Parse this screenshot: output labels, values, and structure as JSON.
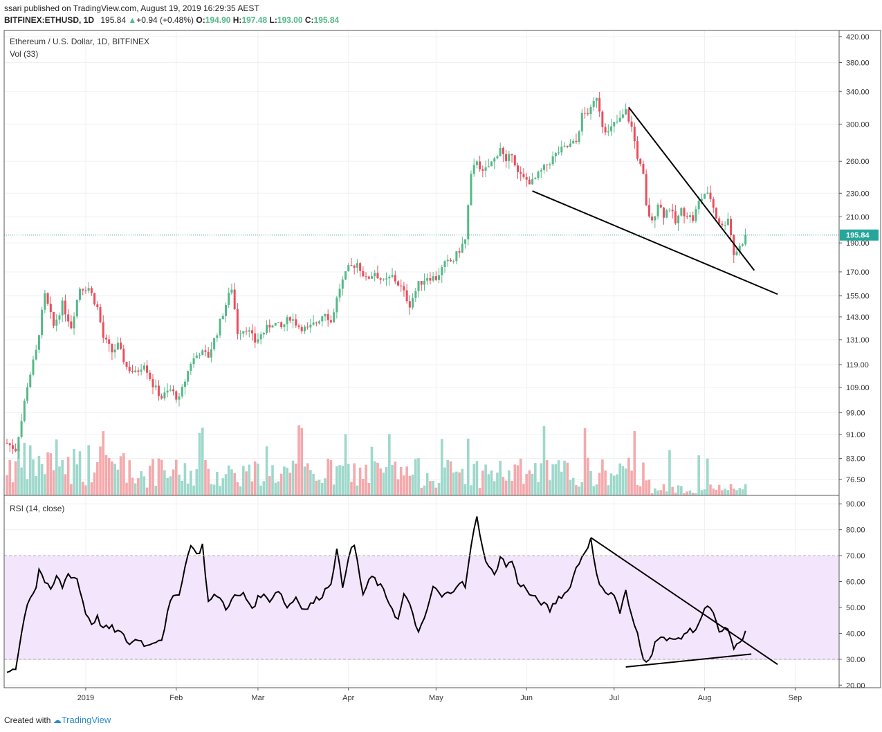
{
  "header": {
    "published": "ssari published on TradingView.com, August 19, 2019 16:29:35 AEST",
    "symbol": "BITFINEX:ETHUSD, 1D",
    "last": "195.84",
    "change": "+0.94 (+0.48%)",
    "o_label": "O:",
    "o": "194.90",
    "h_label": "H:",
    "h": "197.48",
    "l_label": "L:",
    "l": "193.00",
    "c_label": "C:",
    "c": "195.84"
  },
  "footer": {
    "created": "Created with",
    "brand": "TradingView"
  },
  "colors": {
    "up": "#53b987",
    "down": "#eb4d5c",
    "up_vol": "#9ed8cb",
    "down_vol": "#f4a9ad",
    "rsi_band": "#f3e5fc",
    "rsi_line": "#000000",
    "price_line": "#26a69a",
    "price_label_bg": "#26a69a"
  },
  "chart_data": [
    {
      "type": "candlestick",
      "title": "Ethereum / U.S. Dollar, 1D, BITFINEX",
      "volume_label": "Vol (33)",
      "scale": "log",
      "ylim": [
        72,
        430
      ],
      "y_ticks": [
        420,
        380,
        340,
        300,
        260,
        230,
        210,
        190,
        170,
        155,
        143,
        131,
        119,
        109,
        99,
        91,
        83,
        76.5
      ],
      "y_tick_labels": [
        "420.00",
        "380.00",
        "340.00",
        "300.00",
        "260.00",
        "230.00",
        "210.00",
        "190.00",
        "170.00",
        "155.00",
        "143.00",
        "131.00",
        "119.00",
        "109.00",
        "99.00",
        "91.00",
        "83.00",
        "76.50"
      ],
      "last_price": 195.84,
      "last_price_label": "195.84",
      "x_days": [
        0,
        253
      ],
      "x_ticks": [
        {
          "label": "2019",
          "day": 27
        },
        {
          "label": "Feb",
          "day": 58
        },
        {
          "label": "Mar",
          "day": 86
        },
        {
          "label": "Apr",
          "day": 117
        },
        {
          "label": "May",
          "day": 147
        },
        {
          "label": "Jun",
          "day": 178
        },
        {
          "label": "Jul",
          "day": 208
        },
        {
          "label": "Aug",
          "day": 239
        },
        {
          "label": "Sep",
          "day": 270
        }
      ],
      "keypoints": [
        [
          0,
          88
        ],
        [
          3,
          86
        ],
        [
          5,
          96
        ],
        [
          7,
          110
        ],
        [
          10,
          125
        ],
        [
          13,
          155
        ],
        [
          16,
          138
        ],
        [
          19,
          150
        ],
        [
          22,
          138
        ],
        [
          25,
          160
        ],
        [
          28,
          160
        ],
        [
          31,
          148
        ],
        [
          33,
          132
        ],
        [
          36,
          125
        ],
        [
          38,
          128
        ],
        [
          41,
          118
        ],
        [
          44,
          115
        ],
        [
          47,
          120
        ],
        [
          50,
          110
        ],
        [
          53,
          105
        ],
        [
          56,
          108
        ],
        [
          59,
          104
        ],
        [
          61,
          112
        ],
        [
          63,
          120
        ],
        [
          66,
          125
        ],
        [
          69,
          123
        ],
        [
          72,
          135
        ],
        [
          75,
          150
        ],
        [
          77,
          160
        ],
        [
          79,
          135
        ],
        [
          82,
          137
        ],
        [
          85,
          130
        ],
        [
          88,
          135
        ],
        [
          91,
          140
        ],
        [
          94,
          137
        ],
        [
          97,
          143
        ],
        [
          100,
          138
        ],
        [
          103,
          136
        ],
        [
          106,
          140
        ],
        [
          109,
          146
        ],
        [
          111,
          140
        ],
        [
          114,
          160
        ],
        [
          117,
          172
        ],
        [
          120,
          176
        ],
        [
          123,
          165
        ],
        [
          126,
          170
        ],
        [
          129,
          163
        ],
        [
          132,
          167
        ],
        [
          135,
          160
        ],
        [
          138,
          150
        ],
        [
          141,
          162
        ],
        [
          144,
          167
        ],
        [
          147,
          166
        ],
        [
          150,
          175
        ],
        [
          153,
          178
        ],
        [
          155,
          185
        ],
        [
          157,
          192
        ],
        [
          159,
          245
        ],
        [
          161,
          262
        ],
        [
          163,
          248
        ],
        [
          165,
          255
        ],
        [
          167,
          262
        ],
        [
          169,
          275
        ],
        [
          171,
          257
        ],
        [
          173,
          270
        ],
        [
          175,
          248
        ],
        [
          177,
          243
        ],
        [
          180,
          240
        ],
        [
          183,
          250
        ],
        [
          186,
          260
        ],
        [
          189,
          270
        ],
        [
          192,
          275
        ],
        [
          195,
          280
        ],
        [
          197,
          310
        ],
        [
          200,
          316
        ],
        [
          202,
          335
        ],
        [
          204,
          300
        ],
        [
          206,
          290
        ],
        [
          208,
          300
        ],
        [
          210,
          305
        ],
        [
          212,
          315
        ],
        [
          214,
          296
        ],
        [
          216,
          265
        ],
        [
          218,
          245
        ],
        [
          219,
          218
        ],
        [
          221,
          205
        ],
        [
          223,
          222
        ],
        [
          225,
          212
        ],
        [
          227,
          218
        ],
        [
          229,
          205
        ],
        [
          231,
          215
        ],
        [
          233,
          212
        ],
        [
          235,
          208
        ],
        [
          237,
          222
        ],
        [
          239,
          230
        ],
        [
          241,
          226
        ],
        [
          243,
          210
        ],
        [
          245,
          202
        ],
        [
          247,
          210
        ],
        [
          249,
          182
        ],
        [
          251,
          187
        ],
        [
          253,
          195
        ]
      ],
      "series": [
        {
          "name": "Upper trendline",
          "points": [
            [
              213,
              320
            ],
            [
              240,
              226
            ],
            [
              256,
              171
            ]
          ]
        },
        {
          "name": "Lower trendline",
          "points": [
            [
              180,
              232
            ],
            [
              222,
              193
            ],
            [
              264,
              156
            ]
          ]
        }
      ]
    },
    {
      "type": "line",
      "title": "RSI (14, close)",
      "ylim": [
        19,
        93
      ],
      "y_ticks": [
        90,
        80,
        70,
        60,
        50,
        40,
        30,
        20
      ],
      "y_tick_labels": [
        "90.00",
        "80.00",
        "70.00",
        "60.00",
        "50.00",
        "40.00",
        "30.00",
        "20.00"
      ],
      "band": [
        30,
        70
      ],
      "keypoints": [
        [
          0,
          25
        ],
        [
          3,
          27
        ],
        [
          5,
          40
        ],
        [
          7,
          52
        ],
        [
          10,
          58
        ],
        [
          11,
          65
        ],
        [
          13,
          60
        ],
        [
          15,
          56
        ],
        [
          17,
          62
        ],
        [
          19,
          58
        ],
        [
          21,
          63
        ],
        [
          24,
          61
        ],
        [
          27,
          48
        ],
        [
          29,
          44
        ],
        [
          31,
          46
        ],
        [
          33,
          42
        ],
        [
          36,
          42
        ],
        [
          39,
          40
        ],
        [
          42,
          36
        ],
        [
          45,
          38
        ],
        [
          48,
          35
        ],
        [
          50,
          37
        ],
        [
          53,
          38
        ],
        [
          56,
          52
        ],
        [
          59,
          56
        ],
        [
          62,
          70
        ],
        [
          63,
          75
        ],
        [
          65,
          70
        ],
        [
          67,
          74
        ],
        [
          69,
          52
        ],
        [
          72,
          55
        ],
        [
          75,
          50
        ],
        [
          78,
          54
        ],
        [
          81,
          55
        ],
        [
          84,
          50
        ],
        [
          87,
          55
        ],
        [
          90,
          53
        ],
        [
          93,
          57
        ],
        [
          96,
          50
        ],
        [
          99,
          54
        ],
        [
          102,
          49
        ],
        [
          105,
          52
        ],
        [
          108,
          55
        ],
        [
          111,
          60
        ],
        [
          113,
          72
        ],
        [
          115,
          58
        ],
        [
          117,
          70
        ],
        [
          119,
          74
        ],
        [
          122,
          55
        ],
        [
          125,
          62
        ],
        [
          128,
          58
        ],
        [
          131,
          52
        ],
        [
          134,
          45
        ],
        [
          136,
          55
        ],
        [
          139,
          48
        ],
        [
          141,
          40
        ],
        [
          143,
          45
        ],
        [
          146,
          58
        ],
        [
          149,
          54
        ],
        [
          152,
          56
        ],
        [
          155,
          60
        ],
        [
          157,
          58
        ],
        [
          159,
          73
        ],
        [
          161,
          86
        ],
        [
          163,
          72
        ],
        [
          165,
          66
        ],
        [
          167,
          62
        ],
        [
          169,
          70
        ],
        [
          171,
          66
        ],
        [
          173,
          68
        ],
        [
          175,
          60
        ],
        [
          177,
          58
        ],
        [
          180,
          54
        ],
        [
          183,
          52
        ],
        [
          186,
          49
        ],
        [
          189,
          54
        ],
        [
          192,
          56
        ],
        [
          195,
          65
        ],
        [
          198,
          72
        ],
        [
          200,
          76
        ],
        [
          202,
          62
        ],
        [
          204,
          58
        ],
        [
          206,
          55
        ],
        [
          208,
          55
        ],
        [
          210,
          48
        ],
        [
          212,
          56
        ],
        [
          214,
          46
        ],
        [
          216,
          40
        ],
        [
          218,
          31
        ],
        [
          220,
          29
        ],
        [
          222,
          37
        ],
        [
          224,
          38
        ],
        [
          226,
          37
        ],
        [
          228,
          39
        ],
        [
          230,
          37
        ],
        [
          232,
          40
        ],
        [
          234,
          41
        ],
        [
          236,
          42
        ],
        [
          238,
          46
        ],
        [
          240,
          51
        ],
        [
          242,
          47
        ],
        [
          244,
          40
        ],
        [
          246,
          42
        ],
        [
          248,
          39
        ],
        [
          249,
          33
        ],
        [
          251,
          37
        ],
        [
          253,
          40
        ]
      ],
      "series": [
        {
          "name": "RSI upper trendline",
          "points": [
            [
              200,
              77
            ],
            [
              240,
              51
            ],
            [
              264,
              28
            ]
          ]
        },
        {
          "name": "RSI lower trendline",
          "points": [
            [
              212,
              27
            ],
            [
              240,
              30
            ],
            [
              255,
              32
            ]
          ]
        }
      ]
    }
  ]
}
